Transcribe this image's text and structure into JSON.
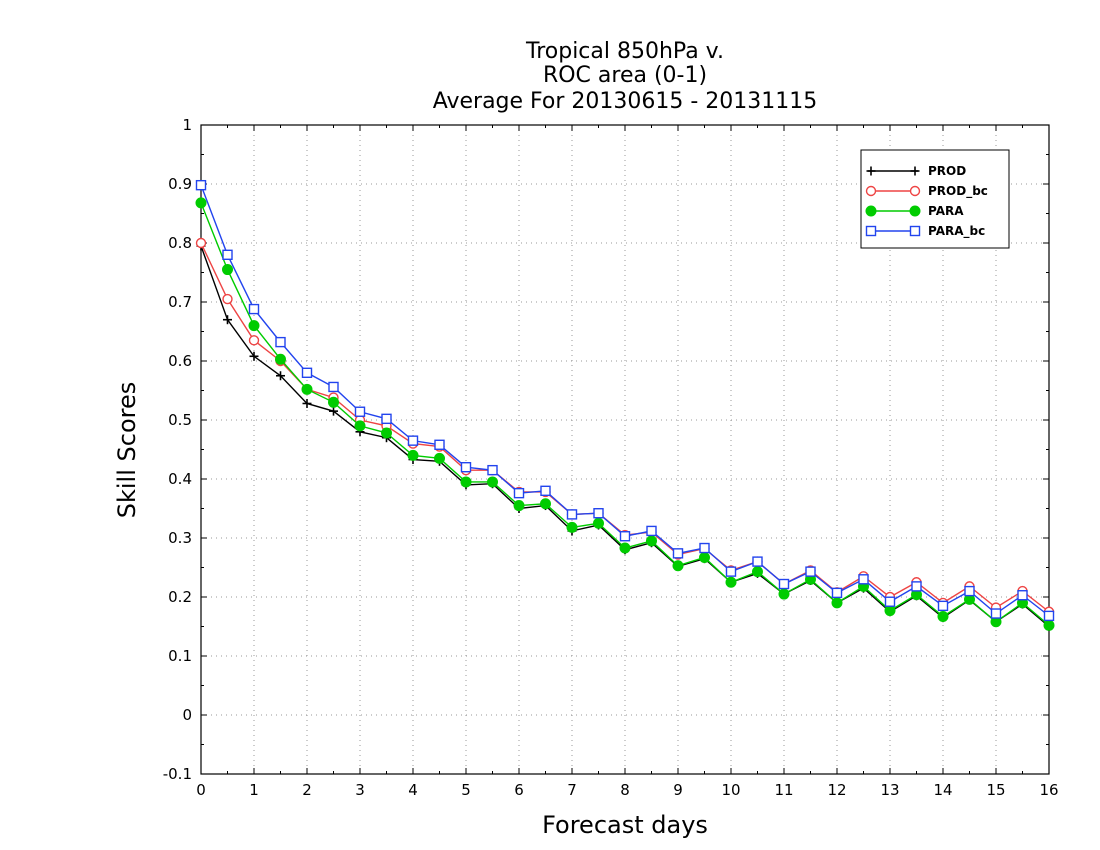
{
  "chart_data": {
    "type": "line",
    "title_lines": [
      "Tropical 850hPa v.",
      "ROC area (0-1)",
      "Average For 20130615 - 20131115"
    ],
    "xlabel": "Forecast days",
    "ylabel": "Skill Scores",
    "xlim": [
      0,
      16
    ],
    "ylim": [
      -0.1,
      1
    ],
    "x_ticks": [
      "0",
      "1",
      "2",
      "3",
      "4",
      "5",
      "6",
      "7",
      "8",
      "9",
      "10",
      "11",
      "12",
      "13",
      "14",
      "15",
      "16"
    ],
    "y_ticks": [
      "-0.1",
      "0",
      "0.1",
      "0.2",
      "0.3",
      "0.4",
      "0.5",
      "0.6",
      "0.7",
      "0.8",
      "0.9",
      "1"
    ],
    "grid": true,
    "legend_position": "top-right",
    "x": [
      0,
      0.5,
      1,
      1.5,
      2,
      2.5,
      3,
      3.5,
      4,
      4.5,
      5,
      5.5,
      6,
      6.5,
      7,
      7.5,
      8,
      8.5,
      9,
      9.5,
      10,
      10.5,
      11,
      11.5,
      12,
      12.5,
      13,
      13.5,
      14,
      14.5,
      15,
      15.5,
      16
    ],
    "series": [
      {
        "name": "PROD",
        "color": "#000000",
        "marker": "plus",
        "values": [
          0.795,
          0.67,
          0.608,
          0.575,
          0.528,
          0.515,
          0.48,
          0.47,
          0.433,
          0.43,
          0.39,
          0.392,
          0.35,
          0.355,
          0.312,
          0.322,
          0.28,
          0.292,
          0.252,
          0.265,
          0.225,
          0.24,
          0.205,
          0.228,
          0.19,
          0.215,
          0.175,
          0.202,
          0.165,
          0.195,
          0.158,
          0.188,
          0.15
        ]
      },
      {
        "name": "PROD_bc",
        "color": "#ee4444",
        "marker": "circle-open",
        "values": [
          0.8,
          0.705,
          0.635,
          0.6,
          0.552,
          0.538,
          0.5,
          0.49,
          0.46,
          0.455,
          0.415,
          0.415,
          0.378,
          0.378,
          0.34,
          0.342,
          0.305,
          0.31,
          0.272,
          0.282,
          0.245,
          0.26,
          0.222,
          0.245,
          0.208,
          0.235,
          0.2,
          0.225,
          0.19,
          0.218,
          0.182,
          0.21,
          0.175
        ]
      },
      {
        "name": "PARA",
        "color": "#00cc00",
        "marker": "circle-filled",
        "values": [
          0.868,
          0.755,
          0.66,
          0.603,
          0.552,
          0.53,
          0.49,
          0.478,
          0.44,
          0.435,
          0.395,
          0.395,
          0.355,
          0.358,
          0.318,
          0.325,
          0.283,
          0.295,
          0.253,
          0.267,
          0.225,
          0.243,
          0.205,
          0.23,
          0.19,
          0.218,
          0.177,
          0.204,
          0.167,
          0.196,
          0.158,
          0.19,
          0.152
        ]
      },
      {
        "name": "PARA_bc",
        "color": "#2244ee",
        "marker": "square-open",
        "values": [
          0.898,
          0.78,
          0.688,
          0.632,
          0.58,
          0.556,
          0.514,
          0.502,
          0.465,
          0.458,
          0.42,
          0.415,
          0.376,
          0.38,
          0.34,
          0.342,
          0.303,
          0.312,
          0.274,
          0.283,
          0.243,
          0.26,
          0.222,
          0.243,
          0.207,
          0.23,
          0.192,
          0.218,
          0.185,
          0.21,
          0.172,
          0.203,
          0.168
        ]
      }
    ]
  }
}
